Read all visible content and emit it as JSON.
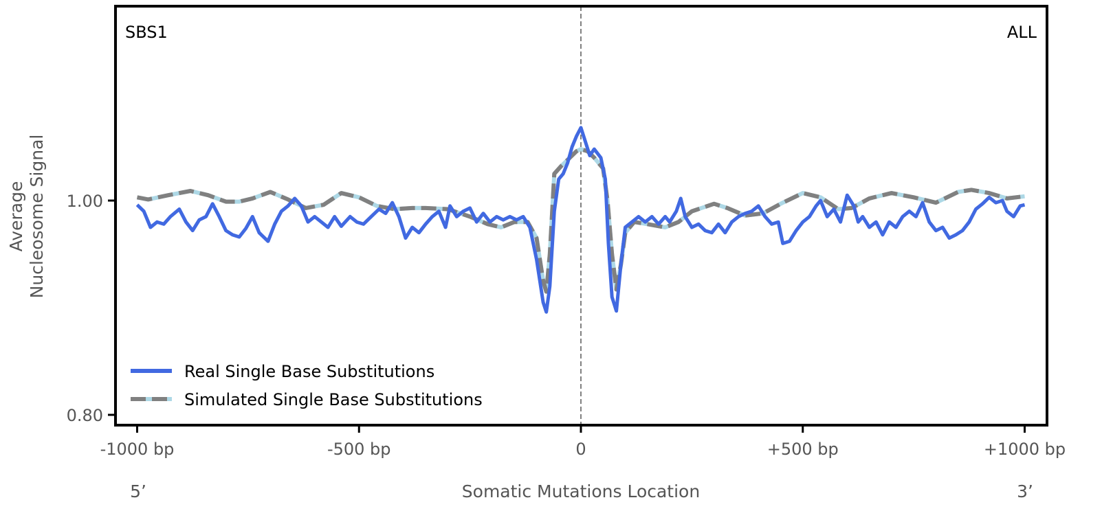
{
  "chart_data": {
    "type": "line",
    "corner_left": "SBS1",
    "corner_right": "ALL",
    "xlabel": "Somatic Mutations Location",
    "ylabel_lines": [
      "Average",
      "Nucleosome Signal"
    ],
    "x_end_labels": {
      "left": "5’",
      "right": "3’"
    },
    "xlim": [
      -1000,
      1000
    ],
    "ylim": [
      0.79,
      1.182
    ],
    "x_ticks": [
      {
        "v": -1000,
        "label": "-1000 bp"
      },
      {
        "v": -500,
        "label": "-500 bp"
      },
      {
        "v": 0,
        "label": "0"
      },
      {
        "v": 500,
        "label": "+500 bp"
      },
      {
        "v": 1000,
        "label": "+1000 bp"
      }
    ],
    "y_ticks": [
      {
        "v": 0.8,
        "label": "0.80"
      },
      {
        "v": 1.0,
        "label": "1.00"
      }
    ],
    "vline_x": 0,
    "grid": false,
    "legend_position": "bottom-left",
    "colors": {
      "real": "#4169e1",
      "simulated": "#808080",
      "simulated_gap": "#add8e6",
      "vline": "#808080"
    },
    "series": [
      {
        "name": "Real Single Base Substitutions",
        "style": "solid",
        "points": [
          [
            -1000,
            0.996
          ],
          [
            -985,
            0.99
          ],
          [
            -970,
            0.975
          ],
          [
            -955,
            0.98
          ],
          [
            -940,
            0.978
          ],
          [
            -925,
            0.985
          ],
          [
            -905,
            0.992
          ],
          [
            -890,
            0.98
          ],
          [
            -875,
            0.972
          ],
          [
            -860,
            0.982
          ],
          [
            -845,
            0.985
          ],
          [
            -830,
            0.997
          ],
          [
            -815,
            0.985
          ],
          [
            -800,
            0.972
          ],
          [
            -785,
            0.968
          ],
          [
            -770,
            0.966
          ],
          [
            -755,
            0.974
          ],
          [
            -740,
            0.985
          ],
          [
            -725,
            0.97
          ],
          [
            -705,
            0.962
          ],
          [
            -690,
            0.978
          ],
          [
            -675,
            0.99
          ],
          [
            -660,
            0.995
          ],
          [
            -645,
            1.002
          ],
          [
            -630,
            0.995
          ],
          [
            -615,
            0.98
          ],
          [
            -600,
            0.985
          ],
          [
            -585,
            0.98
          ],
          [
            -570,
            0.975
          ],
          [
            -555,
            0.985
          ],
          [
            -540,
            0.976
          ],
          [
            -520,
            0.985
          ],
          [
            -505,
            0.98
          ],
          [
            -490,
            0.978
          ],
          [
            -470,
            0.986
          ],
          [
            -455,
            0.992
          ],
          [
            -440,
            0.988
          ],
          [
            -425,
            0.998
          ],
          [
            -410,
            0.985
          ],
          [
            -395,
            0.965
          ],
          [
            -380,
            0.975
          ],
          [
            -365,
            0.97
          ],
          [
            -350,
            0.978
          ],
          [
            -335,
            0.985
          ],
          [
            -320,
            0.99
          ],
          [
            -305,
            0.975
          ],
          [
            -295,
            0.995
          ],
          [
            -280,
            0.985
          ],
          [
            -265,
            0.99
          ],
          [
            -250,
            0.993
          ],
          [
            -235,
            0.98
          ],
          [
            -220,
            0.988
          ],
          [
            -205,
            0.98
          ],
          [
            -190,
            0.985
          ],
          [
            -175,
            0.982
          ],
          [
            -160,
            0.985
          ],
          [
            -145,
            0.982
          ],
          [
            -130,
            0.985
          ],
          [
            -115,
            0.975
          ],
          [
            -100,
            0.945
          ],
          [
            -85,
            0.905
          ],
          [
            -78,
            0.896
          ],
          [
            -70,
            0.92
          ],
          [
            -60,
            0.99
          ],
          [
            -50,
            1.02
          ],
          [
            -40,
            1.025
          ],
          [
            -30,
            1.035
          ],
          [
            -20,
            1.05
          ],
          [
            -10,
            1.06
          ],
          [
            0,
            1.068
          ],
          [
            10,
            1.055
          ],
          [
            20,
            1.042
          ],
          [
            30,
            1.048
          ],
          [
            45,
            1.04
          ],
          [
            55,
            1.02
          ],
          [
            62,
            0.96
          ],
          [
            70,
            0.91
          ],
          [
            80,
            0.897
          ],
          [
            90,
            0.94
          ],
          [
            100,
            0.975
          ],
          [
            115,
            0.98
          ],
          [
            130,
            0.985
          ],
          [
            145,
            0.98
          ],
          [
            160,
            0.985
          ],
          [
            175,
            0.978
          ],
          [
            190,
            0.985
          ],
          [
            200,
            0.98
          ],
          [
            215,
            0.99
          ],
          [
            225,
            1.002
          ],
          [
            235,
            0.985
          ],
          [
            250,
            0.975
          ],
          [
            265,
            0.978
          ],
          [
            280,
            0.972
          ],
          [
            295,
            0.97
          ],
          [
            310,
            0.978
          ],
          [
            325,
            0.97
          ],
          [
            340,
            0.98
          ],
          [
            355,
            0.985
          ],
          [
            370,
            0.988
          ],
          [
            385,
            0.99
          ],
          [
            400,
            0.995
          ],
          [
            415,
            0.985
          ],
          [
            430,
            0.978
          ],
          [
            445,
            0.98
          ],
          [
            455,
            0.96
          ],
          [
            470,
            0.962
          ],
          [
            485,
            0.972
          ],
          [
            500,
            0.98
          ],
          [
            515,
            0.985
          ],
          [
            530,
            0.995
          ],
          [
            540,
            1.0
          ],
          [
            555,
            0.985
          ],
          [
            570,
            0.992
          ],
          [
            585,
            0.98
          ],
          [
            600,
            1.005
          ],
          [
            615,
            0.995
          ],
          [
            625,
            0.98
          ],
          [
            635,
            0.985
          ],
          [
            650,
            0.975
          ],
          [
            665,
            0.98
          ],
          [
            680,
            0.968
          ],
          [
            695,
            0.98
          ],
          [
            710,
            0.975
          ],
          [
            725,
            0.985
          ],
          [
            740,
            0.99
          ],
          [
            755,
            0.985
          ],
          [
            770,
            0.998
          ],
          [
            785,
            0.98
          ],
          [
            800,
            0.972
          ],
          [
            815,
            0.975
          ],
          [
            830,
            0.965
          ],
          [
            845,
            0.968
          ],
          [
            860,
            0.972
          ],
          [
            875,
            0.98
          ],
          [
            890,
            0.992
          ],
          [
            905,
            0.997
          ],
          [
            920,
            1.003
          ],
          [
            935,
            0.998
          ],
          [
            950,
            1.0
          ],
          [
            960,
            0.99
          ],
          [
            975,
            0.985
          ],
          [
            990,
            0.995
          ],
          [
            1000,
            0.996
          ]
        ]
      },
      {
        "name": "Simulated Single Base Substitutions",
        "style": "dashed",
        "points": [
          [
            -1000,
            1.003
          ],
          [
            -975,
            1.001
          ],
          [
            -930,
            1.005
          ],
          [
            -880,
            1.009
          ],
          [
            -840,
            1.005
          ],
          [
            -800,
            0.999
          ],
          [
            -770,
            0.999
          ],
          [
            -740,
            1.002
          ],
          [
            -700,
            1.008
          ],
          [
            -660,
            1.001
          ],
          [
            -620,
            0.993
          ],
          [
            -580,
            0.996
          ],
          [
            -540,
            1.007
          ],
          [
            -500,
            1.003
          ],
          [
            -460,
            0.995
          ],
          [
            -420,
            0.992
          ],
          [
            -380,
            0.993
          ],
          [
            -350,
            0.993
          ],
          [
            -300,
            0.992
          ],
          [
            -250,
            0.985
          ],
          [
            -210,
            0.978
          ],
          [
            -180,
            0.975
          ],
          [
            -150,
            0.98
          ],
          [
            -120,
            0.98
          ],
          [
            -100,
            0.965
          ],
          [
            -85,
            0.925
          ],
          [
            -78,
            0.915
          ],
          [
            -70,
            0.95
          ],
          [
            -60,
            1.025
          ],
          [
            -45,
            1.032
          ],
          [
            -25,
            1.04
          ],
          [
            -10,
            1.046
          ],
          [
            0,
            1.048
          ],
          [
            15,
            1.046
          ],
          [
            30,
            1.04
          ],
          [
            50,
            1.03
          ],
          [
            60,
            1.0
          ],
          [
            70,
            0.95
          ],
          [
            80,
            0.917
          ],
          [
            90,
            0.94
          ],
          [
            100,
            0.97
          ],
          [
            120,
            0.98
          ],
          [
            150,
            0.978
          ],
          [
            190,
            0.975
          ],
          [
            220,
            0.98
          ],
          [
            250,
            0.99
          ],
          [
            300,
            0.997
          ],
          [
            330,
            0.993
          ],
          [
            370,
            0.986
          ],
          [
            410,
            0.988
          ],
          [
            450,
            0.997
          ],
          [
            500,
            1.007
          ],
          [
            540,
            1.003
          ],
          [
            580,
            0.992
          ],
          [
            610,
            0.993
          ],
          [
            650,
            1.002
          ],
          [
            700,
            1.007
          ],
          [
            750,
            1.003
          ],
          [
            800,
            0.998
          ],
          [
            850,
            1.008
          ],
          [
            880,
            1.01
          ],
          [
            920,
            1.007
          ],
          [
            960,
            1.002
          ],
          [
            1000,
            1.004
          ]
        ]
      }
    ]
  }
}
